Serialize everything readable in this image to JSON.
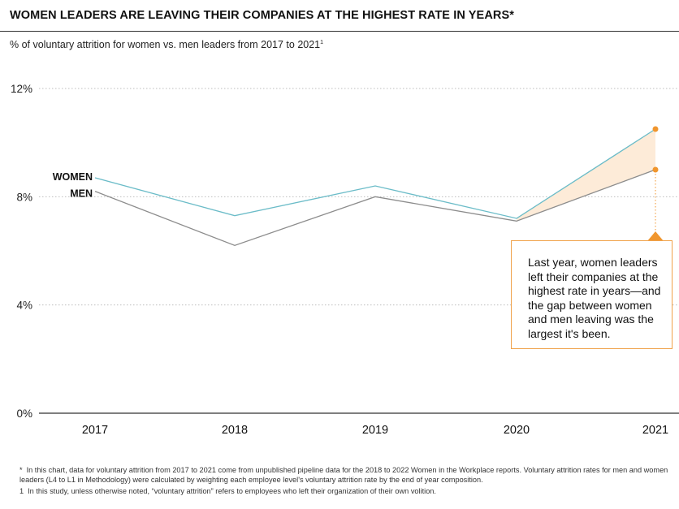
{
  "title": "WOMEN LEADERS ARE LEAVING THEIR COMPANIES AT THE HIGHEST RATE IN YEARS*",
  "subtitle": "% of voluntary attrition for women vs. men leaders from 2017 to 2021",
  "subtitle_mark": "1",
  "callout": "Last year, women leaders left their companies at the highest rate in years—and the gap between women and men leaving was the largest it's been.",
  "footnotes": [
    {
      "mark": "*",
      "text": "In this chart, data for voluntary attrition from 2017 to 2021 come from unpublished pipeline data for the 2018 to 2022 Women in the Workplace reports. Voluntary attrition rates for men and women leaders (L4 to L1 in Methodology) were calculated by weighting each employee level's voluntary attrition rate by the end of year composition."
    },
    {
      "mark": "1",
      "text": "In this study, unless otherwise noted, “voluntary attrition” refers to employees who left their organization of their own volition."
    }
  ],
  "colors": {
    "women": "#6bbcc8",
    "men": "#8c8c8c",
    "accent": "#f0962e",
    "gap_fill": "#fdebd8"
  },
  "chart_data": {
    "type": "line",
    "x": [
      "2017",
      "2018",
      "2019",
      "2020",
      "2021"
    ],
    "series": [
      {
        "name": "WOMEN",
        "values": [
          8.7,
          7.3,
          8.4,
          7.2,
          10.5
        ]
      },
      {
        "name": "MEN",
        "values": [
          8.2,
          6.2,
          8.0,
          7.1,
          9.0
        ]
      }
    ],
    "ylim": [
      0,
      12
    ],
    "yticks": [
      "0%",
      "4%",
      "8%",
      "12%"
    ],
    "ytick_values": [
      0,
      4,
      8,
      12
    ],
    "grid": true
  }
}
